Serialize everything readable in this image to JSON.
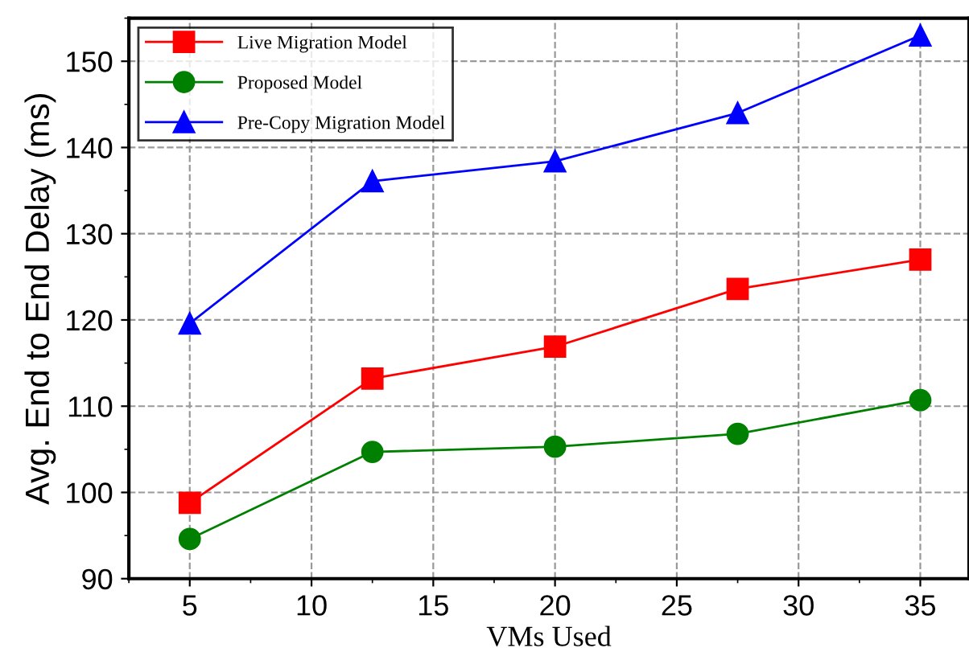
{
  "chart_data": {
    "type": "line",
    "xlabel": "VMs Used",
    "ylabel": "Avg. End to End Delay (ms)",
    "x": [
      5,
      12.5,
      20,
      27.5,
      35
    ],
    "series": [
      {
        "name": "Live Migration Model",
        "color": "#ff0000",
        "marker": "square",
        "values": [
          98.8,
          113.2,
          116.9,
          123.6,
          127.0
        ]
      },
      {
        "name": "Proposed Model",
        "color": "#008000",
        "marker": "circle",
        "values": [
          94.6,
          104.7,
          105.3,
          106.8,
          110.7
        ]
      },
      {
        "name": "Pre-Copy Migration Model",
        "color": "#0000ff",
        "marker": "triangle",
        "values": [
          119.6,
          136.1,
          138.4,
          144.0,
          153.0
        ]
      }
    ],
    "xlim": [
      2.5,
      37
    ],
    "ylim": [
      90,
      155
    ],
    "xticks": [
      5,
      10,
      15,
      20,
      25,
      30,
      35
    ],
    "yticks": [
      90,
      100,
      110,
      120,
      130,
      140,
      150
    ],
    "grid": true,
    "legend": "top left",
    "line_style": "solid"
  }
}
